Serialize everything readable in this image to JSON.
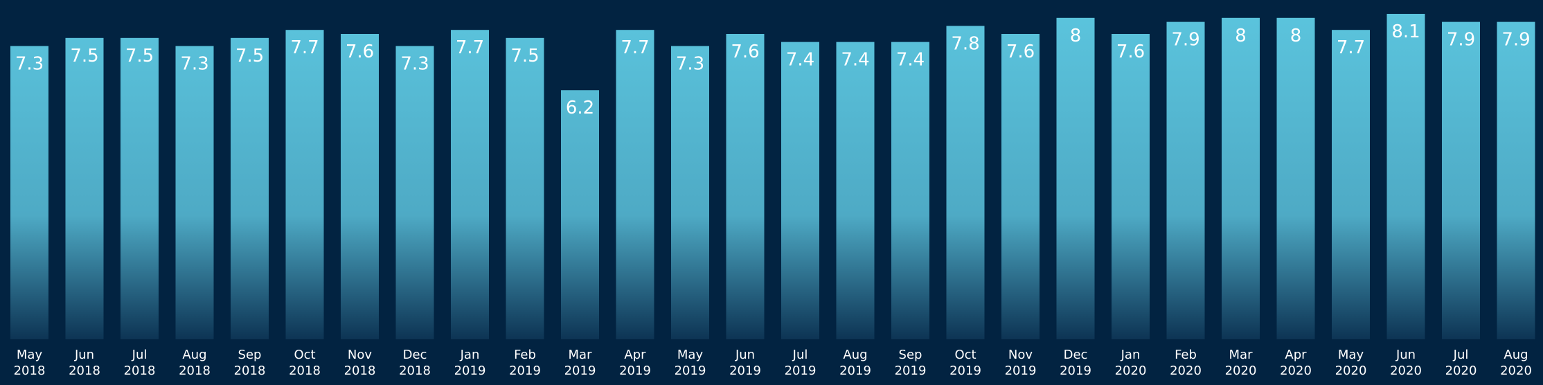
{
  "chart_data": {
    "type": "bar",
    "title": "",
    "xlabel": "",
    "ylabel": "",
    "ylim": [
      0,
      8.5
    ],
    "grid": false,
    "legend": "none",
    "categories": [
      [
        "May",
        "2018"
      ],
      [
        "Jun",
        "2018"
      ],
      [
        "Jul",
        "2018"
      ],
      [
        "Aug",
        "2018"
      ],
      [
        "Sep",
        "2018"
      ],
      [
        "Oct",
        "2018"
      ],
      [
        "Nov",
        "2018"
      ],
      [
        "Dec",
        "2018"
      ],
      [
        "Jan",
        "2019"
      ],
      [
        "Feb",
        "2019"
      ],
      [
        "Mar",
        "2019"
      ],
      [
        "Apr",
        "2019"
      ],
      [
        "May",
        "2019"
      ],
      [
        "Jun",
        "2019"
      ],
      [
        "Jul",
        "2019"
      ],
      [
        "Aug",
        "2019"
      ],
      [
        "Sep",
        "2019"
      ],
      [
        "Oct",
        "2019"
      ],
      [
        "Nov",
        "2019"
      ],
      [
        "Dec",
        "2019"
      ],
      [
        "Jan",
        "2020"
      ],
      [
        "Feb",
        "2020"
      ],
      [
        "Mar",
        "2020"
      ],
      [
        "Apr",
        "2020"
      ],
      [
        "May",
        "2020"
      ],
      [
        "Jun",
        "2020"
      ],
      [
        "Jul",
        "2020"
      ],
      [
        "Aug",
        "2020"
      ]
    ],
    "values": [
      7.3,
      7.5,
      7.5,
      7.3,
      7.5,
      7.7,
      7.6,
      7.3,
      7.7,
      7.5,
      6.2,
      7.7,
      7.3,
      7.6,
      7.4,
      7.4,
      7.4,
      7.8,
      7.6,
      8,
      7.6,
      7.9,
      8,
      8,
      7.7,
      8.1,
      7.9,
      7.9
    ],
    "colors": {
      "background": "#022341",
      "bar_top": "#5bc4dd",
      "bar_mid": "#4eaac5",
      "bar_bottom": "#0d3454",
      "text": "#ffffff"
    }
  }
}
